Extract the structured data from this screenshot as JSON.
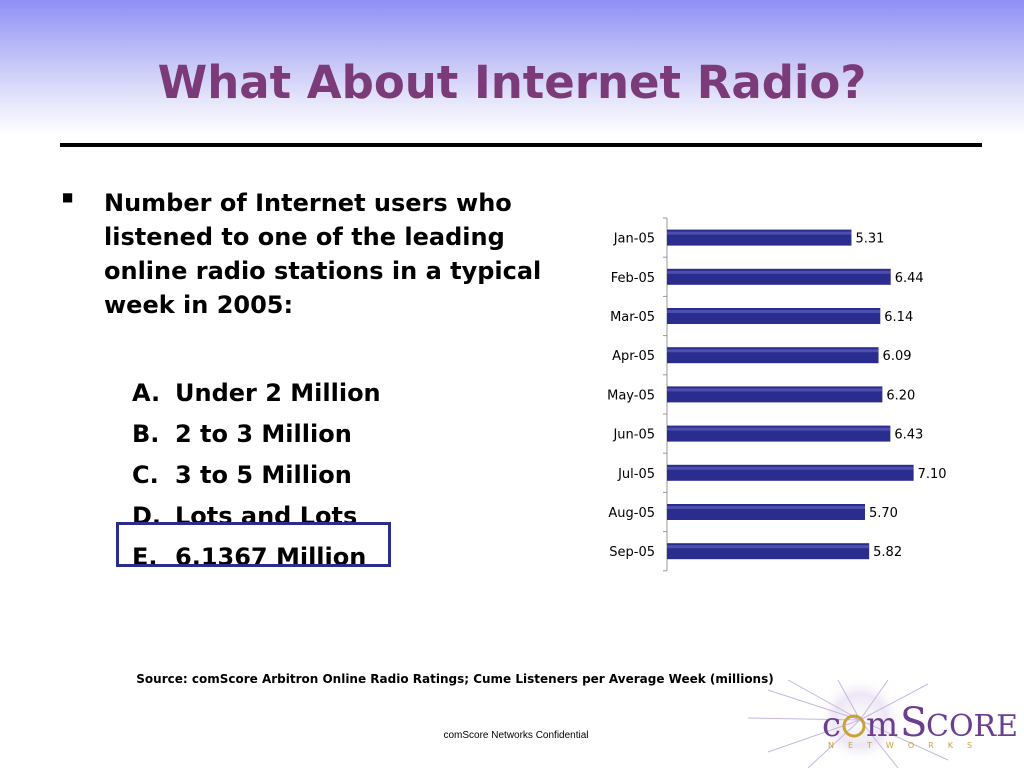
{
  "slide": {
    "title": "What About Internet Radio?",
    "question": "Number of Internet users who listened to one of the leading online radio stations in a typical week in 2005:",
    "options": [
      {
        "letter": "A.",
        "text": "Under 2 Million"
      },
      {
        "letter": "B.",
        "text": "2 to 3 Million"
      },
      {
        "letter": "C.",
        "text": "3 to 5 Million"
      },
      {
        "letter": "D.",
        "text": "Lots and Lots"
      },
      {
        "letter": "E.",
        "text": "6.1367 Million"
      }
    ],
    "source": "Source: comScore Arbitron Online Radio Ratings; Cume Listeners per Average Week (millions)",
    "footer": "comScore Networks Confidential",
    "logo_text": "comScore",
    "logo_subtext": "NETWORKS"
  },
  "colors": {
    "title": "#7b3a78",
    "bar": "#2b2d8e",
    "answer_box": "#2b2d8e",
    "logo_purple": "#6b3f8f",
    "logo_gold": "#c9a23a"
  },
  "chart_data": {
    "type": "bar",
    "orientation": "horizontal",
    "categories": [
      "Jan-05",
      "Feb-05",
      "Mar-05",
      "Apr-05",
      "May-05",
      "Jun-05",
      "Jul-05",
      "Aug-05",
      "Sep-05"
    ],
    "values": [
      5.31,
      6.44,
      6.14,
      6.09,
      6.2,
      6.43,
      7.1,
      5.7,
      5.82
    ],
    "value_labels": [
      "5.31",
      "6.44",
      "6.14",
      "6.09",
      "6.20",
      "6.43",
      "7.10",
      "5.70",
      "5.82"
    ],
    "xlim": [
      0,
      7.6
    ],
    "grid": false,
    "data_labels": true
  }
}
